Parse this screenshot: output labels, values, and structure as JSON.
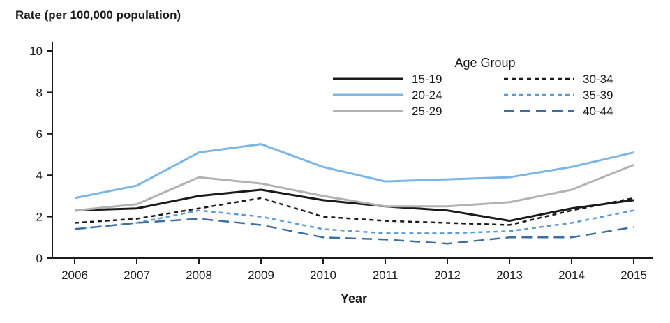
{
  "chart_data": {
    "type": "line",
    "ylabel": "Rate (per 100,000 population)",
    "xlabel": "Year",
    "legend_title": "Age Group",
    "x": [
      2006,
      2007,
      2008,
      2009,
      2010,
      2011,
      2012,
      2013,
      2014,
      2015
    ],
    "ylim": [
      0,
      10
    ],
    "yticks": [
      0,
      2,
      4,
      6,
      8,
      10
    ],
    "grid": false,
    "legend_position": "upper-right-two-columns",
    "axis_color": "#1a1a1a",
    "series": [
      {
        "name": "15-19",
        "color": "#1a1a1a",
        "dash": "solid",
        "width": 3,
        "values": [
          2.3,
          2.4,
          3.0,
          3.3,
          2.8,
          2.5,
          2.3,
          1.8,
          2.4,
          2.8
        ]
      },
      {
        "name": "20-24",
        "color": "#7cb6e4",
        "dash": "solid",
        "width": 3,
        "values": [
          2.9,
          3.5,
          5.1,
          5.5,
          4.4,
          3.7,
          3.8,
          3.9,
          4.4,
          5.1
        ]
      },
      {
        "name": "25-29",
        "color": "#b2b2b2",
        "dash": "solid",
        "width": 3,
        "values": [
          2.3,
          2.6,
          3.9,
          3.6,
          3.0,
          2.5,
          2.5,
          2.7,
          3.3,
          4.5
        ]
      },
      {
        "name": "30-34",
        "color": "#1a1a1a",
        "dash": "short",
        "width": 2.5,
        "values": [
          1.7,
          1.9,
          2.4,
          2.9,
          2.0,
          1.8,
          1.7,
          1.6,
          2.3,
          2.9
        ]
      },
      {
        "name": "35-39",
        "color": "#5b9bd5",
        "dash": "short",
        "width": 2.5,
        "values": [
          1.4,
          1.7,
          2.3,
          2.0,
          1.4,
          1.2,
          1.2,
          1.3,
          1.7,
          2.3
        ]
      },
      {
        "name": "40-44",
        "color": "#3c6e9f",
        "dash": "long",
        "width": 2.5,
        "values": [
          1.4,
          1.7,
          1.9,
          1.6,
          1.0,
          0.9,
          0.7,
          1.0,
          1.0,
          1.5
        ]
      }
    ]
  }
}
